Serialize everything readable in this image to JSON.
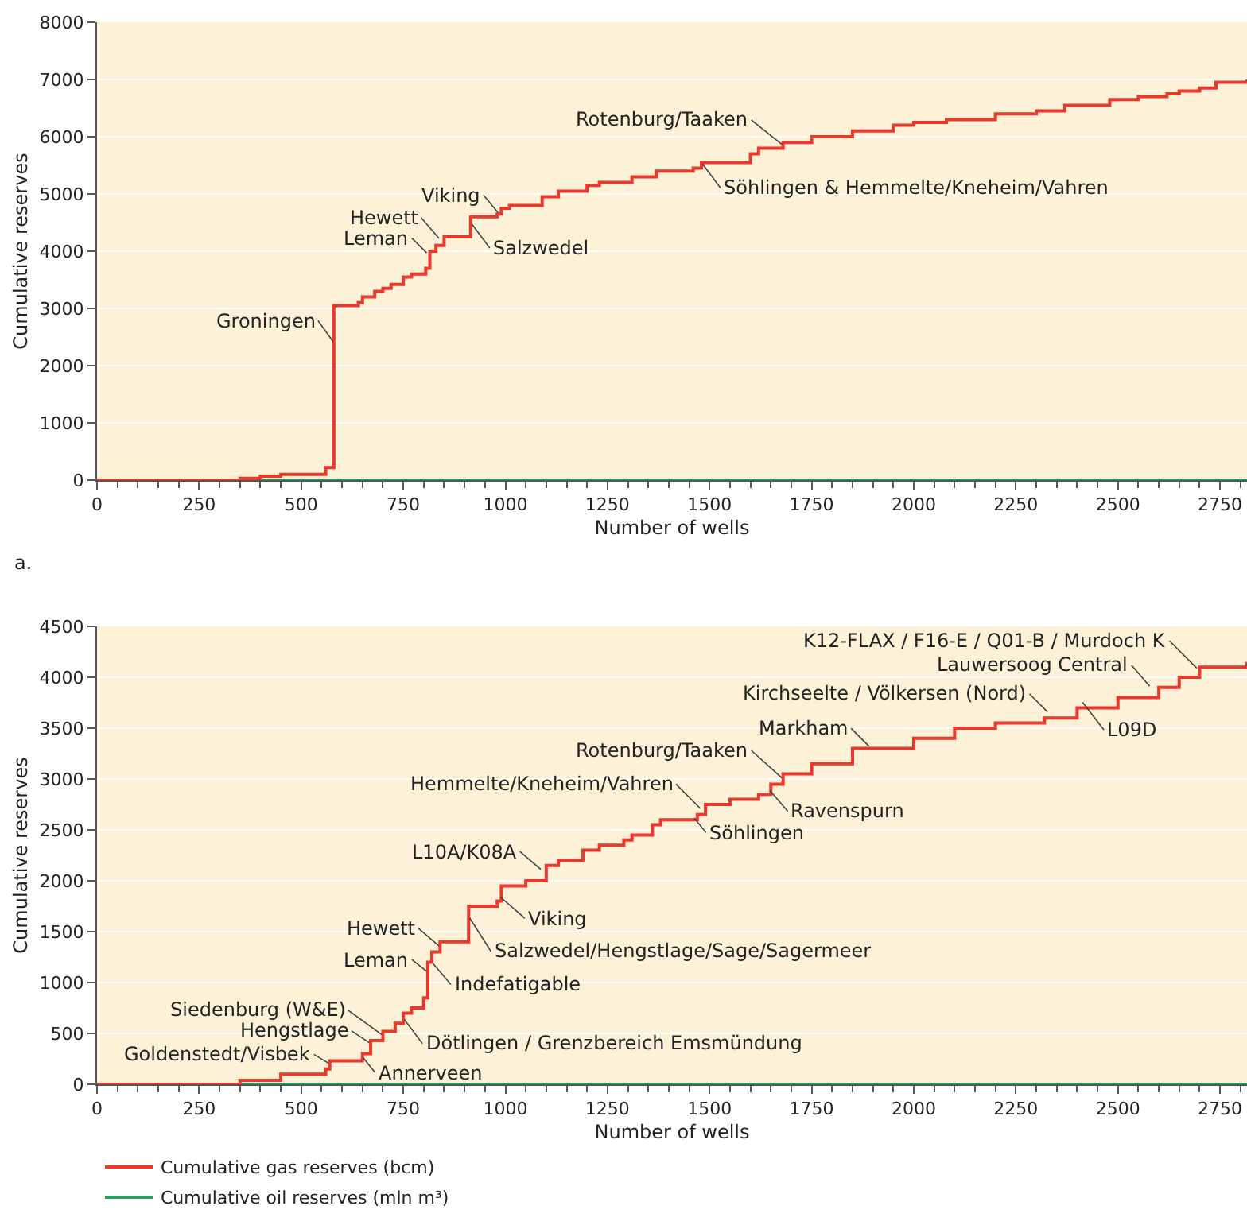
{
  "chart_data": [
    {
      "type": "step",
      "xlabel": "Number of wells",
      "ylabel": "Cumulative reserves",
      "xlim": [
        0,
        2816
      ],
      "ylim": [
        0,
        8000
      ],
      "xticks": [
        0,
        250,
        500,
        750,
        1000,
        1250,
        1500,
        1750,
        2000,
        2250,
        2500,
        2750,
        {
          "value": 50,
          "label": null
        },
        {
          "value": 100,
          "label": null
        },
        {
          "value": 150,
          "label": null
        },
        {
          "value": 200,
          "label": null
        },
        {
          "value": 300,
          "label": null
        },
        {
          "value": 350,
          "label": null
        },
        {
          "value": 400,
          "label": null
        },
        {
          "value": 450,
          "label": null
        },
        {
          "value": 550,
          "label": null
        },
        {
          "value": 600,
          "label": null
        },
        {
          "value": 650,
          "label": null
        },
        {
          "value": 700,
          "label": null
        },
        {
          "value": 800,
          "label": null
        },
        {
          "value": 850,
          "label": null
        },
        {
          "value": 900,
          "label": null
        },
        {
          "value": 950,
          "label": null
        },
        {
          "value": 1050,
          "label": null
        },
        {
          "value": 1100,
          "label": null
        },
        {
          "value": 1150,
          "label": null
        },
        {
          "value": 1200,
          "label": null
        },
        {
          "value": 1300,
          "label": null
        },
        {
          "value": 1350,
          "label": null
        },
        {
          "value": 1400,
          "label": null
        },
        {
          "value": 1450,
          "label": null
        },
        {
          "value": 1550,
          "label": null
        },
        {
          "value": 1600,
          "label": null
        },
        {
          "value": 1650,
          "label": null
        },
        {
          "value": 1700,
          "label": null
        },
        {
          "value": 1800,
          "label": null
        },
        {
          "value": 1850,
          "label": null
        },
        {
          "value": 1900,
          "label": null
        },
        {
          "value": 1950,
          "label": null
        },
        {
          "value": 2050,
          "label": null
        },
        {
          "value": 2100,
          "label": null
        },
        {
          "value": 2150,
          "label": null
        },
        {
          "value": 2200,
          "label": null
        },
        {
          "value": 2300,
          "label": null
        },
        {
          "value": 2350,
          "label": null
        },
        {
          "value": 2400,
          "label": null
        },
        {
          "value": 2450,
          "label": null
        },
        {
          "value": 2550,
          "label": null
        },
        {
          "value": 2600,
          "label": null
        },
        {
          "value": 2650,
          "label": null
        },
        {
          "value": 2700,
          "label": null
        },
        {
          "value": 2800,
          "label": null
        }
      ],
      "yticks": [
        0,
        1000,
        2000,
        3000,
        4000,
        5000,
        6000,
        7000,
        8000
      ],
      "grid": "y",
      "legend": false,
      "series": [
        {
          "color": "#e8392c",
          "x": [
            0,
            350,
            400,
            450,
            560,
            580,
            640,
            650,
            680,
            700,
            720,
            750,
            770,
            805,
            815,
            830,
            850,
            915,
            980,
            990,
            1010,
            1090,
            1130,
            1200,
            1230,
            1310,
            1370,
            1460,
            1480,
            1600,
            1620,
            1680,
            1750,
            1850,
            1950,
            2000,
            2080,
            2200,
            2300,
            2370,
            2480,
            2550,
            2620,
            2650,
            2700,
            2740,
            2816
          ],
          "values": [
            0,
            30,
            70,
            100,
            220,
            3050,
            3100,
            3200,
            3300,
            3350,
            3420,
            3550,
            3600,
            3700,
            4000,
            4100,
            4250,
            4600,
            4650,
            4750,
            4800,
            4950,
            5050,
            5150,
            5200,
            5300,
            5400,
            5450,
            5550,
            5700,
            5800,
            5900,
            6000,
            6100,
            6200,
            6250,
            6300,
            6400,
            6450,
            6550,
            6650,
            6700,
            6750,
            6800,
            6850,
            6950,
            7000
          ]
        },
        {
          "color": "#2e9b5e",
          "x": [
            0,
            2816
          ],
          "values": [
            0,
            0
          ]
        }
      ],
      "annotations": [
        {
          "text": "Groningen",
          "x": 580,
          "y": 2400
        },
        {
          "text": "Hewett",
          "x": 840,
          "y": 4200
        },
        {
          "text": "Leman",
          "x": 810,
          "y": 3950
        },
        {
          "text": "Salzwedel",
          "x": 915,
          "y": 4500
        },
        {
          "text": "Viking",
          "x": 985,
          "y": 4650
        },
        {
          "text": "Rotenburg/Taaken",
          "x": 1680,
          "y": 5850
        },
        {
          "text": "Söhlingen & Hemmelte/Kneheim/Vahren",
          "x": 1480,
          "y": 5550
        },
        "a."
      ]
    },
    {
      "type": "step",
      "xlabel": "Number of wells",
      "ylabel": "Cumulative reserves",
      "xlim": [
        0,
        2816
      ],
      "ylim": [
        0,
        4500
      ],
      "xticks": [
        0,
        250,
        500,
        750,
        1000,
        1250,
        1500,
        1750,
        2000,
        2250,
        2500,
        2750,
        {
          "value": 50,
          "label": null
        },
        {
          "value": 100,
          "label": null
        },
        {
          "value": 150,
          "label": null
        },
        {
          "value": 200,
          "label": null
        },
        {
          "value": 300,
          "label": null
        },
        {
          "value": 350,
          "label": null
        },
        {
          "value": 400,
          "label": null
        },
        {
          "value": 450,
          "label": null
        },
        {
          "value": 550,
          "label": null
        },
        {
          "value": 600,
          "label": null
        },
        {
          "value": 650,
          "label": null
        },
        {
          "value": 700,
          "label": null
        },
        {
          "value": 800,
          "label": null
        },
        {
          "value": 850,
          "label": null
        },
        {
          "value": 900,
          "label": null
        },
        {
          "value": 950,
          "label": null
        },
        {
          "value": 1050,
          "label": null
        },
        {
          "value": 1100,
          "label": null
        },
        {
          "value": 1150,
          "label": null
        },
        {
          "value": 1200,
          "label": null
        },
        {
          "value": 1300,
          "label": null
        },
        {
          "value": 1350,
          "label": null
        },
        {
          "value": 1400,
          "label": null
        },
        {
          "value": 1450,
          "label": null
        },
        {
          "value": 1550,
          "label": null
        },
        {
          "value": 1600,
          "label": null
        },
        {
          "value": 1650,
          "label": null
        },
        {
          "value": 1700,
          "label": null
        },
        {
          "value": 1800,
          "label": null
        },
        {
          "value": 1850,
          "label": null
        },
        {
          "value": 1900,
          "label": null
        },
        {
          "value": 1950,
          "label": null
        },
        {
          "value": 2050,
          "label": null
        },
        {
          "value": 2100,
          "label": null
        },
        {
          "value": 2150,
          "label": null
        },
        {
          "value": 2200,
          "label": null
        },
        {
          "value": 2300,
          "label": null
        },
        {
          "value": 2350,
          "label": null
        },
        {
          "value": 2400,
          "label": null
        },
        {
          "value": 2450,
          "label": null
        },
        {
          "value": 2550,
          "label": null
        },
        {
          "value": 2600,
          "label": null
        },
        {
          "value": 2650,
          "label": null
        },
        {
          "value": 2700,
          "label": null
        },
        {
          "value": 2800,
          "label": null
        }
      ],
      "yticks": [
        0,
        500,
        1000,
        1500,
        2000,
        2500,
        3000,
        3500,
        4000,
        4500
      ],
      "grid": "y",
      "legend": "bottom left",
      "series": [
        {
          "name": "Cumulative gas reserves (bcm)",
          "color": "#e8392c",
          "x": [
            0,
            350,
            450,
            560,
            570,
            650,
            670,
            700,
            730,
            750,
            770,
            800,
            810,
            820,
            840,
            910,
            980,
            990,
            1050,
            1100,
            1130,
            1190,
            1230,
            1290,
            1310,
            1360,
            1380,
            1470,
            1490,
            1550,
            1620,
            1650,
            1680,
            1750,
            1850,
            2000,
            2100,
            2200,
            2320,
            2400,
            2500,
            2600,
            2650,
            2700,
            2816
          ],
          "values": [
            0,
            40,
            100,
            150,
            230,
            300,
            430,
            520,
            600,
            700,
            750,
            850,
            1200,
            1300,
            1400,
            1750,
            1800,
            1950,
            2000,
            2150,
            2200,
            2300,
            2350,
            2400,
            2450,
            2550,
            2600,
            2650,
            2750,
            2800,
            2850,
            2950,
            3050,
            3150,
            3300,
            3400,
            3500,
            3550,
            3600,
            3700,
            3800,
            3900,
            4000,
            4100,
            4150
          ]
        },
        {
          "name": "Cumulative oil reserves (mln m³)",
          "color": "#2e9b5e",
          "x": [
            0,
            2816
          ],
          "values": [
            0,
            0
          ]
        }
      ],
      "annotations": [
        {
          "text": "Goldenstedt/Visbek",
          "x": 570,
          "y": 200
        },
        {
          "text": "Annerveen",
          "x": 650,
          "y": 270
        },
        {
          "text": "Hengstlage",
          "x": 670,
          "y": 400
        },
        {
          "text": "Siedenburg (W&E)",
          "x": 700,
          "y": 480
        },
        {
          "text": "Dötlingen / Grenzbereich Emsmündung",
          "x": 750,
          "y": 650
        },
        {
          "text": "Leman",
          "x": 810,
          "y": 1100
        },
        {
          "text": "Indefatigable",
          "x": 820,
          "y": 1200
        },
        {
          "text": "Hewett",
          "x": 840,
          "y": 1350
        },
        {
          "text": "Salzwedel/Hengstlage/Sage/Sagermeer",
          "x": 910,
          "y": 1650
        },
        {
          "text": "Viking",
          "x": 985,
          "y": 1850
        },
        {
          "text": "L10A/K08A",
          "x": 1090,
          "y": 2100
        },
        {
          "text": "Hemmelte/Kneheim/Vahren",
          "x": 1480,
          "y": 2700
        },
        {
          "text": "Söhlingen",
          "x": 1460,
          "y": 2630
        },
        {
          "text": "Rotenburg/Taaken",
          "x": 1680,
          "y": 3000
        },
        {
          "text": "Ravenspurn",
          "x": 1645,
          "y": 2900
        },
        {
          "text": "Markham",
          "x": 1893,
          "y": 3312
        },
        {
          "text": "Kirchseelte / Völkersen (Nord)",
          "x": 2330,
          "y": 3650
        },
        {
          "text": "L09D",
          "x": 2411,
          "y": 3766
        },
        {
          "text": "Lauwersoog Central",
          "x": 2580,
          "y": 3900
        },
        {
          "text": "K12-FLAX / F16-E / Q01-B / Murdoch K",
          "x": 2696,
          "y": 4078
        }
      ]
    }
  ]
}
